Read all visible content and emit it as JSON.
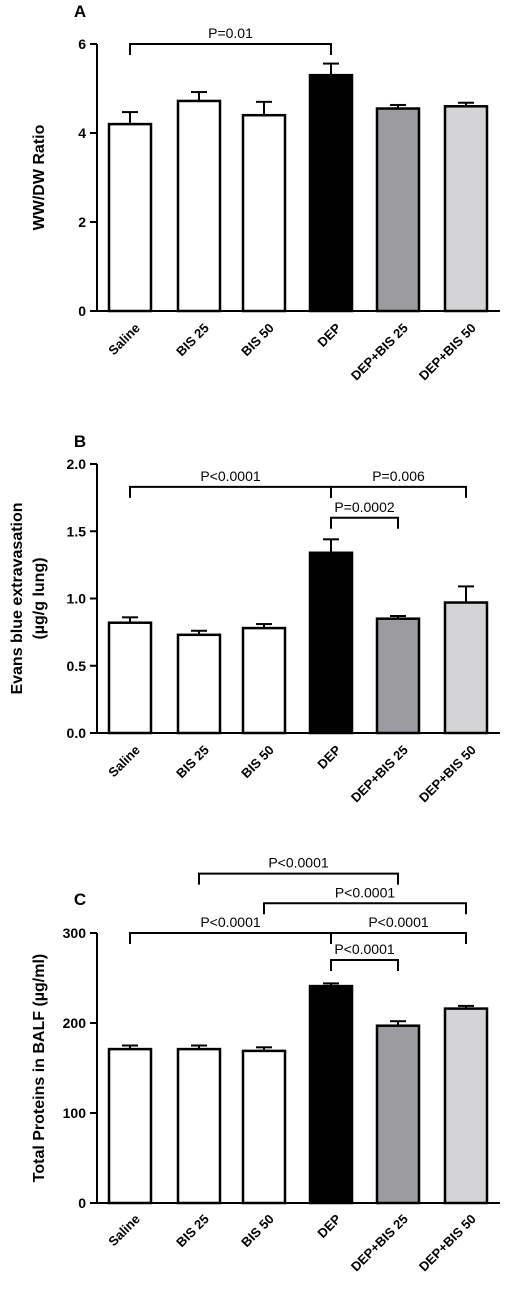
{
  "chart_data": [
    {
      "panel": "A",
      "type": "bar",
      "ylabel": "WW/DW Ratio",
      "ylim": [
        0,
        6
      ],
      "yticks": [
        "0",
        "2",
        "4",
        "6"
      ],
      "yticks_values": [
        0,
        2,
        4,
        6
      ],
      "categories": [
        "Saline",
        "BIS 25",
        "BIS 50",
        "DEP",
        "DEP+BIS 25",
        "DEP+BIS 50"
      ],
      "values": [
        4.2,
        4.72,
        4.4,
        5.3,
        4.55,
        4.6
      ],
      "errors": [
        0.27,
        0.2,
        0.3,
        0.26,
        0.08,
        0.08
      ],
      "colors": [
        "#ffffff",
        "#ffffff",
        "#ffffff",
        "#000000",
        "#9c9ca0",
        "#d4d4d6"
      ],
      "comparisons": [
        {
          "from": 0,
          "to": 3,
          "label": "P=0.01",
          "level": 6.0
        }
      ]
    },
    {
      "panel": "B",
      "type": "bar",
      "ylabel": "Evans blue extravasation (µg/g lung)",
      "ylabel_lines": [
        "Evans blue extravasation",
        "(µg/g lung)"
      ],
      "ylim": [
        0,
        2.0
      ],
      "yticks": [
        "0.0",
        "0.5",
        "1.0",
        "1.5",
        "2.0"
      ],
      "yticks_values": [
        0,
        0.5,
        1.0,
        1.5,
        2.0
      ],
      "categories": [
        "Saline",
        "BIS 25",
        "BIS 50",
        "DEP",
        "DEP+BIS 25",
        "DEP+BIS 50"
      ],
      "values": [
        0.82,
        0.73,
        0.78,
        1.34,
        0.85,
        0.97
      ],
      "errors": [
        0.04,
        0.03,
        0.03,
        0.1,
        0.02,
        0.12
      ],
      "colors": [
        "#ffffff",
        "#ffffff",
        "#ffffff",
        "#000000",
        "#9c9ca0",
        "#d4d4d6"
      ],
      "comparisons": [
        {
          "from": 0,
          "to": 3,
          "label": "P<0.0001",
          "level": 1.83
        },
        {
          "from": 3,
          "to": 5,
          "label": "P=0.006",
          "level": 1.83
        },
        {
          "from": 3,
          "to": 4,
          "label": "P=0.0002",
          "level": 1.6
        }
      ]
    },
    {
      "panel": "C",
      "type": "bar",
      "ylabel": "Total Proteins in BALF (µg/ml)",
      "ylim": [
        0,
        300
      ],
      "yticks": [
        "0",
        "100",
        "200",
        "300"
      ],
      "yticks_values": [
        0,
        100,
        200,
        300
      ],
      "categories": [
        "Saline",
        "BIS 25",
        "BIS 50",
        "DEP",
        "DEP+BIS 25",
        "DEP+BIS 50"
      ],
      "values": [
        171,
        171,
        169,
        241,
        197,
        216
      ],
      "errors": [
        4,
        4,
        4,
        3,
        5,
        3
      ],
      "colors": [
        "#ffffff",
        "#ffffff",
        "#ffffff",
        "#000000",
        "#9c9ca0",
        "#d4d4d6"
      ],
      "comparisons": [
        {
          "from": 1,
          "to": 4,
          "label": "P<0.0001",
          "level": 366
        },
        {
          "from": 2,
          "to": 5,
          "label": "P<0.0001",
          "level": 333
        },
        {
          "from": 0,
          "to": 3,
          "label": "P<0.0001",
          "level": 300
        },
        {
          "from": 3,
          "to": 5,
          "label": "P<0.0001",
          "level": 300
        },
        {
          "from": 3,
          "to": 4,
          "label": "P<0.0001",
          "level": 270
        }
      ]
    }
  ]
}
